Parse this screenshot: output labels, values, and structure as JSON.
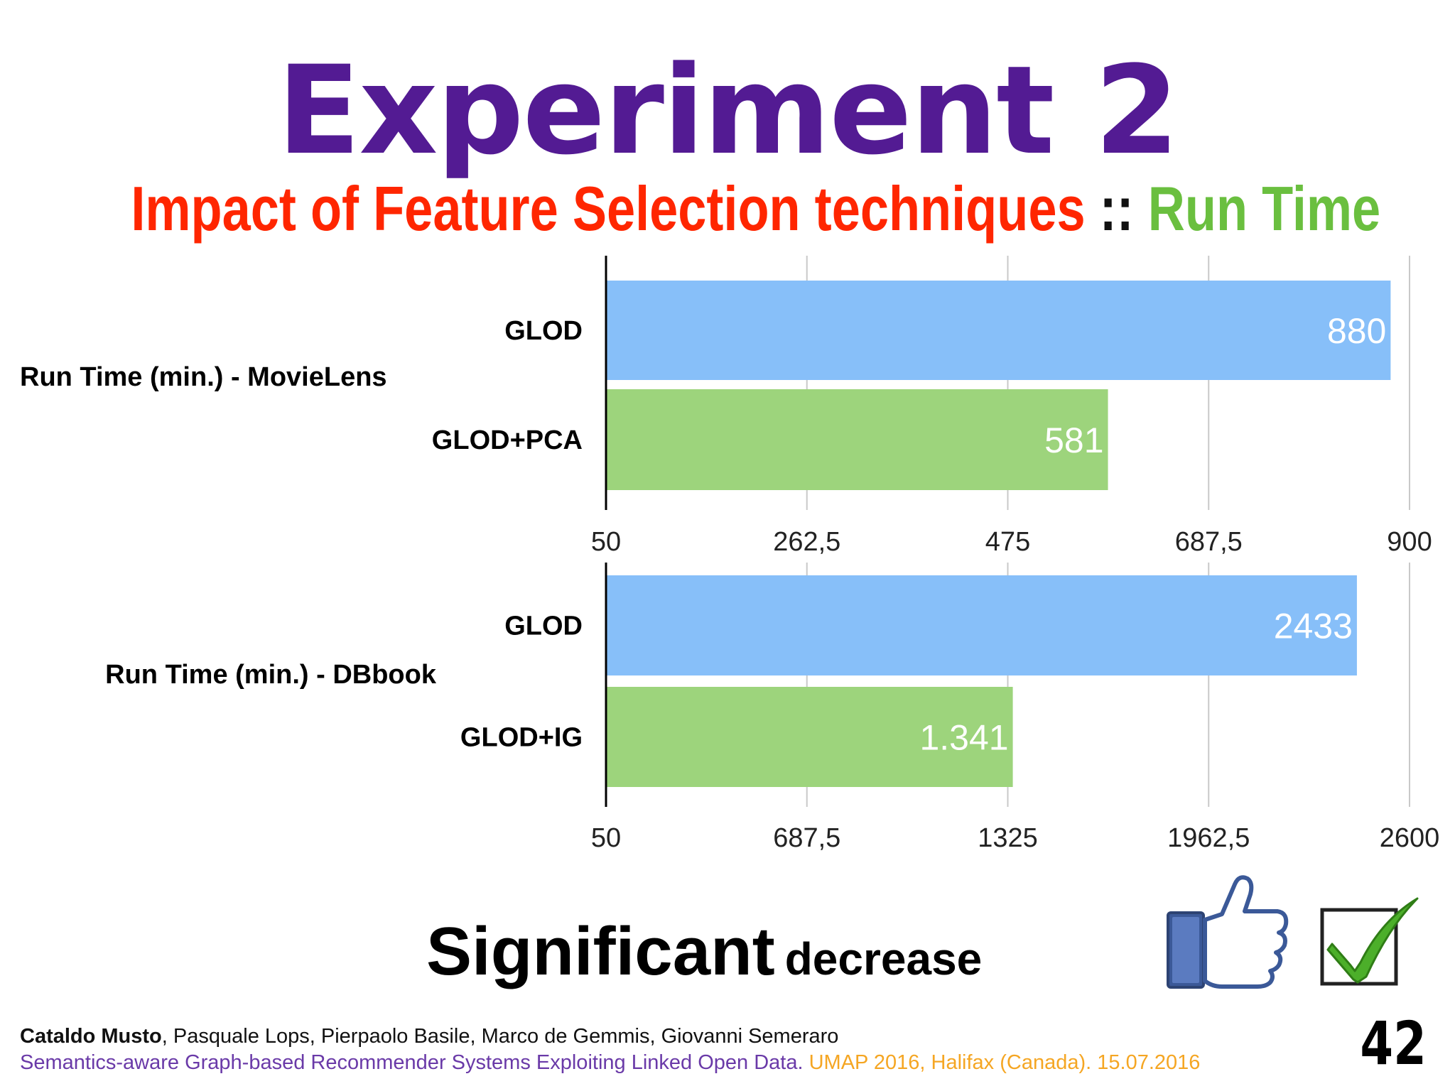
{
  "title": "Experiment 2",
  "subtitle": {
    "main": "Impact of Feature Selection techniques",
    "separator": " :: ",
    "accent": "Run Time"
  },
  "colors": {
    "title": "#531b93",
    "subtitle_main": "#ff2600",
    "subtitle_accent": "#6abf3f",
    "bar_blue": "#87bff9",
    "bar_green": "#9dd47c"
  },
  "chart_data": [
    {
      "type": "bar",
      "orientation": "horizontal",
      "group_label": "Run Time (min.) - MovieLens",
      "categories": [
        "GLOD",
        "GLOD+PCA"
      ],
      "values": [
        880,
        581
      ],
      "value_labels": [
        "880",
        "581"
      ],
      "bar_colors": [
        "#87bff9",
        "#9dd47c"
      ],
      "xlim": [
        50,
        900
      ],
      "ticks": [
        50,
        262.5,
        475,
        687.5,
        900
      ],
      "tick_labels": [
        "50",
        "262,5",
        "475",
        "687,5",
        "900"
      ],
      "grid": true
    },
    {
      "type": "bar",
      "orientation": "horizontal",
      "group_label": "Run Time (min.) - DBbook",
      "categories": [
        "GLOD",
        "GLOD+IG"
      ],
      "values": [
        2433,
        1341
      ],
      "value_labels": [
        "2433",
        "1.341"
      ],
      "bar_colors": [
        "#87bff9",
        "#9dd47c"
      ],
      "xlim": [
        50,
        2600
      ],
      "ticks": [
        50,
        687.5,
        1325,
        1962.5,
        2600
      ],
      "tick_labels": [
        "50",
        "687,5",
        "1325",
        "1962,5",
        "2600"
      ],
      "grid": true
    }
  ],
  "conclusion": {
    "big": "Significant",
    "small": "decrease"
  },
  "icons": [
    "thumbs-up-icon",
    "check-icon"
  ],
  "footer": {
    "lead_author": "Cataldo Musto",
    "other_authors": ", Pasquale Lops, Pierpaolo Basile, Marco de Gemmis, Giovanni Semeraro",
    "paper_title": "Semantics-aware Graph-based Recommender Systems Exploiting Linked Open Data.",
    "venue": " UMAP 2016, Halifax (Canada). 15.07.2016"
  },
  "slide_number": "42"
}
